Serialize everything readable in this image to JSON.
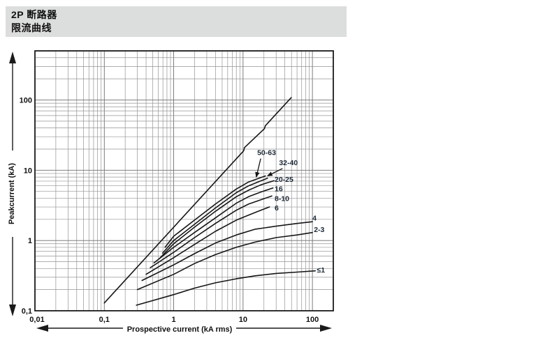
{
  "banner": {
    "line1": "2P 断路器",
    "line2": "限流曲线"
  },
  "chart_data": {
    "type": "line",
    "title": "2P 断路器 限流曲线",
    "x_axis": {
      "label": "Prospective current (kA rms)",
      "scale": "log",
      "range": [
        0.01,
        200
      ],
      "ticks": [
        {
          "v": 0.01,
          "label": "0,01"
        },
        {
          "v": 0.1,
          "label": "0,1"
        },
        {
          "v": 1,
          "label": "1"
        },
        {
          "v": 10,
          "label": "10"
        },
        {
          "v": 100,
          "label": "100"
        }
      ]
    },
    "y_axis": {
      "label": "Peakcurrent  (kA)",
      "scale": "log",
      "range": [
        0.1,
        500
      ],
      "ticks": [
        {
          "v": 0.1,
          "label": "0,1"
        },
        {
          "v": 1,
          "label": "1"
        },
        {
          "v": 10,
          "label": "10"
        },
        {
          "v": 100,
          "label": "100"
        }
      ]
    },
    "grid": {
      "visible": true,
      "minor_lines": true
    },
    "series": [
      {
        "name": "unlimited-peak-line",
        "label": "",
        "points": [
          [
            0.1,
            0.129
          ],
          [
            10.2,
            18.9
          ],
          [
            10.5,
            21
          ],
          [
            20.3,
            39
          ],
          [
            21,
            43
          ],
          [
            49.5,
            108
          ]
        ]
      },
      {
        "name": "50-63",
        "label": "50-63",
        "points": [
          [
            0.75,
            0.8
          ],
          [
            1,
            1.15
          ],
          [
            2,
            1.95
          ],
          [
            4,
            3.3
          ],
          [
            8,
            5.4
          ],
          [
            12,
            6.8
          ],
          [
            17,
            7.7
          ],
          [
            21,
            8.3
          ]
        ]
      },
      {
        "name": "32-40",
        "label": "32-40",
        "points": [
          [
            0.69,
            0.66
          ],
          [
            1,
            1.0
          ],
          [
            2,
            1.7
          ],
          [
            4,
            2.9
          ],
          [
            8,
            4.8
          ],
          [
            12,
            6.0
          ],
          [
            17,
            6.9
          ],
          [
            22.5,
            7.7
          ]
        ]
      },
      {
        "name": "20-25",
        "label": "20-25",
        "points": [
          [
            0.62,
            0.55
          ],
          [
            1,
            0.9
          ],
          [
            2,
            1.55
          ],
          [
            4,
            2.6
          ],
          [
            8,
            4.2
          ],
          [
            12,
            5.2
          ],
          [
            18,
            6.2
          ],
          [
            28,
            7.1
          ]
        ]
      },
      {
        "name": "16",
        "label": "16",
        "points": [
          [
            0.52,
            0.48
          ],
          [
            1,
            0.8
          ],
          [
            2,
            1.3
          ],
          [
            4,
            2.1
          ],
          [
            8,
            3.4
          ],
          [
            12,
            4.2
          ],
          [
            18,
            4.9
          ],
          [
            27,
            5.6
          ]
        ]
      },
      {
        "name": "8-10",
        "label": "8-10",
        "points": [
          [
            0.46,
            0.41
          ],
          [
            1,
            0.68
          ],
          [
            2,
            1.1
          ],
          [
            4,
            1.75
          ],
          [
            8,
            2.7
          ],
          [
            12,
            3.3
          ],
          [
            18,
            3.8
          ],
          [
            26,
            4.3
          ]
        ]
      },
      {
        "name": "6",
        "label": "6",
        "points": [
          [
            0.4,
            0.33
          ],
          [
            1,
            0.57
          ],
          [
            2,
            0.88
          ],
          [
            4,
            1.35
          ],
          [
            8,
            1.95
          ],
          [
            12,
            2.3
          ],
          [
            18,
            2.7
          ],
          [
            24,
            3.0
          ]
        ]
      },
      {
        "name": "4",
        "label": "4",
        "points": [
          [
            0.35,
            0.27
          ],
          [
            1,
            0.45
          ],
          [
            2,
            0.65
          ],
          [
            4,
            0.92
          ],
          [
            8,
            1.2
          ],
          [
            15,
            1.45
          ],
          [
            30,
            1.6
          ],
          [
            60,
            1.75
          ],
          [
            100,
            1.85
          ]
        ]
      },
      {
        "name": "2-3",
        "label": "2-3",
        "points": [
          [
            0.3,
            0.2
          ],
          [
            1,
            0.33
          ],
          [
            2,
            0.47
          ],
          [
            4,
            0.63
          ],
          [
            8,
            0.8
          ],
          [
            15,
            0.95
          ],
          [
            30,
            1.1
          ],
          [
            60,
            1.2
          ],
          [
            100,
            1.3
          ]
        ]
      },
      {
        "name": "le-1",
        "label": "≤1",
        "points": [
          [
            0.29,
            0.12
          ],
          [
            1,
            0.17
          ],
          [
            2,
            0.21
          ],
          [
            4,
            0.25
          ],
          [
            8,
            0.285
          ],
          [
            15,
            0.315
          ],
          [
            30,
            0.34
          ],
          [
            60,
            0.355
          ],
          [
            110,
            0.37
          ]
        ]
      }
    ],
    "annotations": [
      {
        "text": "50-63",
        "at": [
          16,
          18
        ],
        "arrow_to": [
          15.5,
          8.0
        ]
      },
      {
        "text": "32-40",
        "at": [
          33,
          13
        ],
        "arrow_to": [
          22.5,
          8.3
        ]
      },
      {
        "text": "20-25",
        "at": [
          28.5,
          7.5
        ]
      },
      {
        "text": "16",
        "at": [
          28.5,
          5.5
        ]
      },
      {
        "text": "8-10",
        "at": [
          28.5,
          4.0
        ]
      },
      {
        "text": "6",
        "at": [
          28.5,
          2.95
        ]
      },
      {
        "text": "4",
        "at": [
          100,
          2.1
        ]
      },
      {
        "text": "2-3",
        "at": [
          105,
          1.45
        ]
      },
      {
        "text": "≤1",
        "at": [
          116,
          0.385
        ]
      }
    ],
    "colors": {
      "curve": "#161616",
      "grid_minor": "#949494",
      "grid_major": "#6e6e6e",
      "frame": "#1a1a1a",
      "annotation": "#1c2836",
      "tick_text": "#111111",
      "banner_bg": "#dcdddd"
    }
  }
}
